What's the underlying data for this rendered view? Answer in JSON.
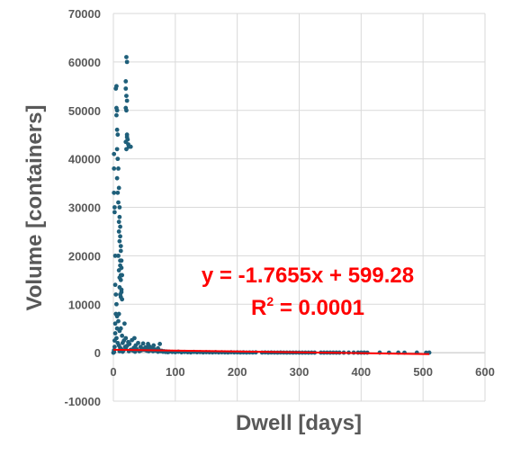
{
  "chart_data": {
    "type": "scatter",
    "xlabel": "Dwell [days]",
    "ylabel": "Volume [containers]",
    "xlim": [
      0,
      600
    ],
    "ylim": [
      -10000,
      70000
    ],
    "x_ticks": [
      0,
      100,
      200,
      300,
      400,
      500,
      600
    ],
    "y_ticks": [
      -10000,
      0,
      10000,
      20000,
      30000,
      40000,
      50000,
      60000,
      70000
    ],
    "y_tick_labels": [
      "-10000",
      "0",
      "10000",
      "20000",
      "30000",
      "40000",
      "50000",
      "60000",
      "70000"
    ],
    "grid": "vertical and horizontal",
    "legend": "none",
    "series": [
      {
        "marker_color": "#1f5f7a",
        "points": [
          [
            0,
            0
          ],
          [
            1,
            100
          ],
          [
            1,
            500
          ],
          [
            2,
            1200
          ],
          [
            2,
            2500
          ],
          [
            3,
            4000
          ],
          [
            3,
            6000
          ],
          [
            4,
            8000
          ],
          [
            1,
            33000
          ],
          [
            1,
            38000
          ],
          [
            1,
            41000
          ],
          [
            2,
            30000
          ],
          [
            2,
            29000
          ],
          [
            3,
            20000
          ],
          [
            3,
            14000
          ],
          [
            4,
            12000
          ],
          [
            5,
            3000
          ],
          [
            5,
            10000
          ],
          [
            6,
            5000
          ],
          [
            6,
            7500
          ],
          [
            7,
            2000
          ],
          [
            8,
            6500
          ],
          [
            9,
            1500
          ],
          [
            9,
            8000
          ],
          [
            10,
            300
          ],
          [
            10,
            4500
          ],
          [
            11,
            1000
          ],
          [
            12,
            5000
          ],
          [
            13,
            700
          ],
          [
            14,
            3500
          ],
          [
            15,
            2000
          ],
          [
            16,
            400
          ],
          [
            17,
            2500
          ],
          [
            18,
            6000
          ],
          [
            19,
            1200
          ],
          [
            20,
            3000
          ],
          [
            5,
            55000
          ],
          [
            4,
            54500
          ],
          [
            5,
            50500
          ],
          [
            6,
            50000
          ],
          [
            5,
            49000
          ],
          [
            6,
            46000
          ],
          [
            7,
            45000
          ],
          [
            6,
            42000
          ],
          [
            7,
            40000
          ],
          [
            8,
            38000
          ],
          [
            9,
            34000
          ],
          [
            10,
            30000
          ],
          [
            10,
            28000
          ],
          [
            11,
            26000
          ],
          [
            11,
            24000
          ],
          [
            12,
            22000
          ],
          [
            12,
            21000
          ],
          [
            13,
            19000
          ],
          [
            13,
            17500
          ],
          [
            14,
            16000
          ],
          [
            6,
            36000
          ],
          [
            7,
            33000
          ],
          [
            8,
            31000
          ],
          [
            9,
            27000
          ],
          [
            9,
            25000
          ],
          [
            10,
            23000
          ],
          [
            11,
            19000
          ],
          [
            11,
            18000
          ],
          [
            12,
            16000
          ],
          [
            12,
            15000
          ],
          [
            13,
            13000
          ],
          [
            13,
            12500
          ],
          [
            14,
            11000
          ],
          [
            8,
            20000
          ],
          [
            9,
            17000
          ],
          [
            10,
            15500
          ],
          [
            10,
            13500
          ],
          [
            11,
            12000
          ],
          [
            12,
            11500
          ],
          [
            21,
            61000
          ],
          [
            22,
            60000
          ],
          [
            20,
            56000
          ],
          [
            20,
            54500
          ],
          [
            21,
            53000
          ],
          [
            22,
            52000
          ],
          [
            20,
            50500
          ],
          [
            21,
            50000
          ],
          [
            22,
            44500
          ],
          [
            23,
            44000
          ],
          [
            24,
            43000
          ],
          [
            25,
            42500
          ],
          [
            20,
            43500
          ],
          [
            21,
            42000
          ],
          [
            22,
            45000
          ],
          [
            28,
            42500
          ],
          [
            15,
            200
          ],
          [
            20,
            800
          ],
          [
            22,
            1400
          ],
          [
            24,
            2200
          ],
          [
            25,
            300
          ],
          [
            26,
            1800
          ],
          [
            28,
            600
          ],
          [
            30,
            2600
          ],
          [
            32,
            400
          ],
          [
            33,
            1000
          ],
          [
            34,
            3000
          ],
          [
            35,
            200
          ],
          [
            36,
            1500
          ],
          [
            38,
            700
          ],
          [
            40,
            2000
          ],
          [
            42,
            300
          ],
          [
            44,
            1200
          ],
          [
            45,
            500
          ],
          [
            47,
            800
          ],
          [
            48,
            1900
          ],
          [
            50,
            600
          ],
          [
            52,
            1100
          ],
          [
            54,
            400
          ],
          [
            55,
            900
          ],
          [
            57,
            300
          ],
          [
            58,
            1300
          ],
          [
            60,
            500
          ],
          [
            62,
            1000
          ],
          [
            64,
            300
          ],
          [
            66,
            700
          ],
          [
            68,
            400
          ],
          [
            70,
            600
          ],
          [
            72,
            200
          ],
          [
            74,
            500
          ],
          [
            76,
            300
          ],
          [
            78,
            400
          ],
          [
            80,
            200
          ],
          [
            82,
            300
          ],
          [
            84,
            150
          ],
          [
            86,
            250
          ],
          [
            88,
            100
          ],
          [
            90,
            200
          ],
          [
            75,
            1800
          ],
          [
            72,
            900
          ],
          [
            65,
            1500
          ],
          [
            56,
            1800
          ],
          [
            95,
            150
          ],
          [
            100,
            100
          ],
          [
            105,
            200
          ],
          [
            110,
            80
          ],
          [
            115,
            150
          ],
          [
            120,
            100
          ],
          [
            125,
            60
          ],
          [
            130,
            150
          ],
          [
            135,
            90
          ],
          [
            140,
            120
          ],
          [
            145,
            50
          ],
          [
            150,
            100
          ],
          [
            155,
            80
          ],
          [
            160,
            60
          ],
          [
            165,
            100
          ],
          [
            170,
            50
          ],
          [
            175,
            80
          ],
          [
            180,
            60
          ],
          [
            185,
            40
          ],
          [
            190,
            90
          ],
          [
            195,
            50
          ],
          [
            200,
            70
          ],
          [
            205,
            40
          ],
          [
            210,
            60
          ],
          [
            215,
            30
          ],
          [
            220,
            50
          ],
          [
            225,
            40
          ],
          [
            230,
            60
          ],
          [
            240,
            30
          ],
          [
            245,
            50
          ],
          [
            250,
            20
          ],
          [
            255,
            40
          ],
          [
            260,
            30
          ],
          [
            265,
            20
          ],
          [
            270,
            40
          ],
          [
            275,
            30
          ],
          [
            280,
            20
          ],
          [
            285,
            30
          ],
          [
            290,
            20
          ],
          [
            295,
            30
          ],
          [
            300,
            20
          ],
          [
            305,
            10
          ],
          [
            310,
            20
          ],
          [
            315,
            10
          ],
          [
            320,
            20
          ],
          [
            325,
            10
          ],
          [
            335,
            20
          ],
          [
            340,
            10
          ],
          [
            345,
            20
          ],
          [
            350,
            10
          ],
          [
            355,
            20
          ],
          [
            360,
            10
          ],
          [
            365,
            15
          ],
          [
            372,
            10
          ],
          [
            380,
            10
          ],
          [
            388,
            10
          ],
          [
            395,
            15
          ],
          [
            400,
            10
          ],
          [
            405,
            10
          ],
          [
            410,
            5
          ],
          [
            430,
            10
          ],
          [
            445,
            5
          ],
          [
            460,
            10
          ],
          [
            470,
            5
          ],
          [
            490,
            10
          ],
          [
            505,
            5
          ],
          [
            510,
            10
          ]
        ]
      }
    ],
    "trendline": {
      "type": "linear",
      "slope": -1.7655,
      "intercept": 599.28,
      "x_range": [
        0,
        510
      ],
      "color": "#ff0000"
    },
    "equation_text": "y = -1.7655x + 599.28",
    "r_squared_label": "R",
    "r_squared_superscript": "2",
    "r_squared_value": " = 0.0001"
  }
}
